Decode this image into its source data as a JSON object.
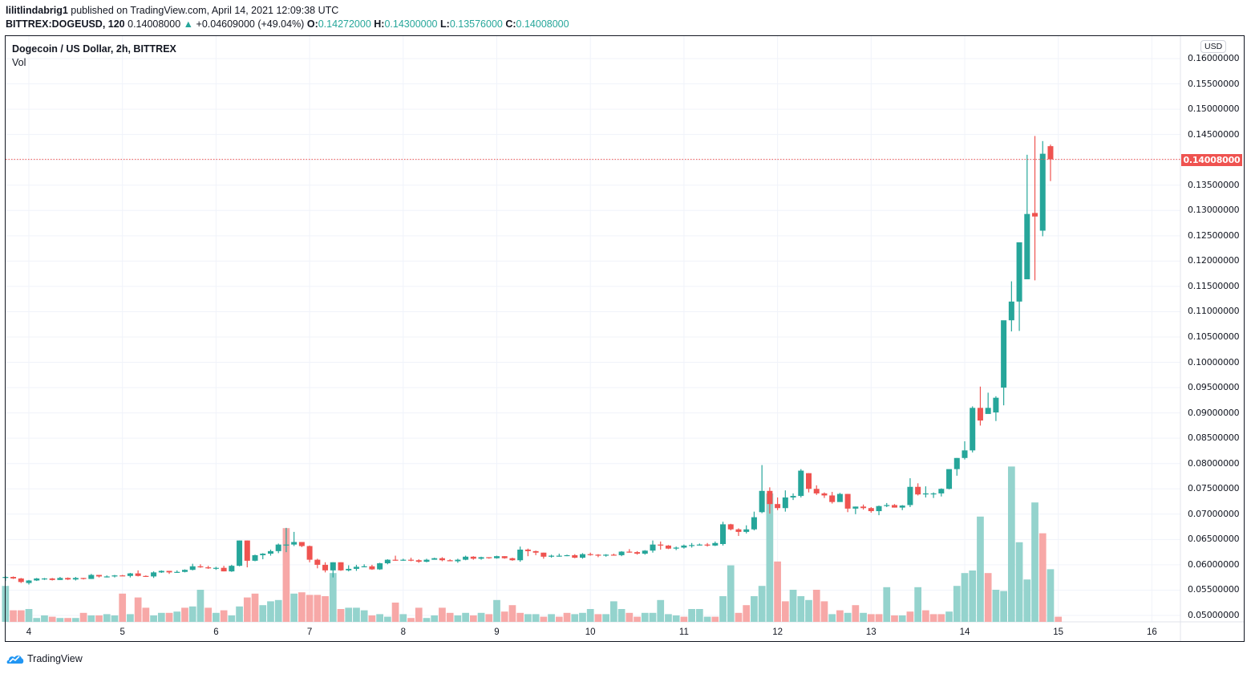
{
  "header": {
    "publisher": "lilitlindabrig1",
    "published_text": " published on TradingView.com, April 14, 2021 12:09:38 UTC",
    "symbol": "BITTREX:DOGEUSD, 120",
    "last": "0.14008000",
    "change_arrow": "▲",
    "change": "+0.04609000 (+49.04%)",
    "o_label": "O:",
    "o": "0.14272000",
    "h_label": "H:",
    "h": "0.14300000",
    "l_label": "L:",
    "l": "0.13576000",
    "c_label": "C:",
    "c": "0.14008000"
  },
  "legend": {
    "title": "Dogecoin / US Dollar, 2h, BITTREX",
    "volume_label": "Vol"
  },
  "currency_button": "USD",
  "last_price_label": "0.14008000",
  "footer": {
    "brand": "TradingView"
  },
  "colors": {
    "up": "#26a69a",
    "down": "#ef5350",
    "vol_up": "#94d3cd",
    "vol_down": "#f7a8a7",
    "grid": "#f0f3fa",
    "last_line": "#ef5350"
  },
  "chart_data": {
    "type": "candlestick",
    "title": "Dogecoin / US Dollar, 2h, BITTREX",
    "interval": "2h",
    "xlabel": "",
    "ylabel": "USD",
    "ylim": [
      0.0485,
      0.162
    ],
    "grid": true,
    "y_ticks": [
      "0.16000000",
      "0.15500000",
      "0.15000000",
      "0.14500000",
      "0.14000000",
      "0.13500000",
      "0.13000000",
      "0.12500000",
      "0.12000000",
      "0.11500000",
      "0.11000000",
      "0.10500000",
      "0.10000000",
      "0.09500000",
      "0.09000000",
      "0.08500000",
      "0.08000000",
      "0.07500000",
      "0.07000000",
      "0.06500000",
      "0.06000000",
      "0.05500000",
      "0.05000000"
    ],
    "x_ticks": [
      "4",
      "5",
      "6",
      "7",
      "8",
      "9",
      "10",
      "11",
      "12",
      "13",
      "14",
      "15",
      "16"
    ],
    "last_price": 0.14008,
    "candles_start_day": 3.75,
    "candles": [
      [
        0.0574,
        0.0578,
        0.0568,
        0.0576
      ],
      [
        0.0576,
        0.0577,
        0.0572,
        0.0573
      ],
      [
        0.0573,
        0.0574,
        0.0564,
        0.0566
      ],
      [
        0.0564,
        0.057,
        0.0561,
        0.0569
      ],
      [
        0.0569,
        0.0574,
        0.0568,
        0.0573
      ],
      [
        0.0573,
        0.0574,
        0.057,
        0.0573
      ],
      [
        0.0573,
        0.0574,
        0.0569,
        0.057
      ],
      [
        0.057,
        0.0576,
        0.057,
        0.0574
      ],
      [
        0.0574,
        0.0575,
        0.057,
        0.0571
      ],
      [
        0.0571,
        0.0576,
        0.0569,
        0.0574
      ],
      [
        0.0574,
        0.0574,
        0.0571,
        0.0572
      ],
      [
        0.0572,
        0.0582,
        0.0572,
        0.058
      ],
      [
        0.058,
        0.058,
        0.0575,
        0.0577
      ],
      [
        0.0577,
        0.0579,
        0.0575,
        0.0577
      ],
      [
        0.0577,
        0.058,
        0.0575,
        0.0579
      ],
      [
        0.0579,
        0.058,
        0.0578,
        0.0578
      ],
      [
        0.0578,
        0.0584,
        0.0575,
        0.0583
      ],
      [
        0.0583,
        0.0589,
        0.0577,
        0.0578
      ],
      [
        0.0578,
        0.0579,
        0.0576,
        0.0577
      ],
      [
        0.0577,
        0.0587,
        0.0574,
        0.0585
      ],
      [
        0.0585,
        0.0589,
        0.0584,
        0.0588
      ],
      [
        0.0588,
        0.0588,
        0.0582,
        0.0585
      ],
      [
        0.0585,
        0.0589,
        0.0584,
        0.0586
      ],
      [
        0.0586,
        0.0591,
        0.0585,
        0.059
      ],
      [
        0.059,
        0.0602,
        0.0589,
        0.0597
      ],
      [
        0.0597,
        0.0601,
        0.0594,
        0.0595
      ],
      [
        0.0595,
        0.0598,
        0.0592,
        0.0593
      ],
      [
        0.0593,
        0.0596,
        0.059,
        0.0594
      ],
      [
        0.0594,
        0.0598,
        0.0587,
        0.0587
      ],
      [
        0.0587,
        0.06,
        0.0586,
        0.0598
      ],
      [
        0.0598,
        0.0648,
        0.0597,
        0.0648
      ],
      [
        0.0648,
        0.0648,
        0.0595,
        0.0608
      ],
      [
        0.0608,
        0.062,
        0.0607,
        0.0619
      ],
      [
        0.0619,
        0.0623,
        0.0611,
        0.0622
      ],
      [
        0.0622,
        0.063,
        0.0618,
        0.0627
      ],
      [
        0.0627,
        0.0642,
        0.0623,
        0.064
      ],
      [
        0.064,
        0.0673,
        0.0625,
        0.064
      ],
      [
        0.064,
        0.0665,
        0.0637,
        0.0645
      ],
      [
        0.0645,
        0.0645,
        0.0635,
        0.0637
      ],
      [
        0.0637,
        0.0638,
        0.0605,
        0.061
      ],
      [
        0.061,
        0.0612,
        0.0593,
        0.06
      ],
      [
        0.06,
        0.0605,
        0.0585,
        0.0589
      ],
      [
        0.0589,
        0.0605,
        0.0575,
        0.0605
      ],
      [
        0.0605,
        0.0605,
        0.0588,
        0.0589
      ],
      [
        0.0589,
        0.0599,
        0.0587,
        0.0592
      ],
      [
        0.0592,
        0.06,
        0.0588,
        0.0596
      ],
      [
        0.0596,
        0.0601,
        0.0595,
        0.0597
      ],
      [
        0.0597,
        0.06,
        0.059,
        0.0591
      ],
      [
        0.0591,
        0.0604,
        0.059,
        0.0603
      ],
      [
        0.0603,
        0.0611,
        0.0601,
        0.061
      ],
      [
        0.061,
        0.0618,
        0.0608,
        0.0609
      ],
      [
        0.0609,
        0.0612,
        0.0608,
        0.061
      ],
      [
        0.061,
        0.0614,
        0.0607,
        0.0609
      ],
      [
        0.0609,
        0.0611,
        0.0604,
        0.0606
      ],
      [
        0.0606,
        0.0612,
        0.0605,
        0.061
      ],
      [
        0.061,
        0.0614,
        0.061,
        0.0613
      ],
      [
        0.0613,
        0.0615,
        0.0607,
        0.0609
      ],
      [
        0.0609,
        0.0611,
        0.0607,
        0.0607
      ],
      [
        0.0607,
        0.0612,
        0.0604,
        0.061
      ],
      [
        0.061,
        0.0618,
        0.0609,
        0.0616
      ],
      [
        0.0616,
        0.0617,
        0.061,
        0.0612
      ],
      [
        0.0612,
        0.0616,
        0.061,
        0.0615
      ],
      [
        0.0615,
        0.0615,
        0.0612,
        0.0613
      ],
      [
        0.0613,
        0.0618,
        0.0612,
        0.0617
      ],
      [
        0.0617,
        0.0617,
        0.0612,
        0.0613
      ],
      [
        0.0613,
        0.0614,
        0.0608,
        0.0609
      ],
      [
        0.0609,
        0.0636,
        0.0606,
        0.063
      ],
      [
        0.063,
        0.0632,
        0.0617,
        0.0627
      ],
      [
        0.0627,
        0.0628,
        0.0619,
        0.0624
      ],
      [
        0.0624,
        0.0624,
        0.0612,
        0.0616
      ],
      [
        0.0616,
        0.062,
        0.0614,
        0.0618
      ],
      [
        0.0618,
        0.0622,
        0.0616,
        0.0618
      ],
      [
        0.0618,
        0.062,
        0.0617,
        0.0619
      ],
      [
        0.0619,
        0.0621,
        0.0613,
        0.0614
      ],
      [
        0.0614,
        0.0623,
        0.0612,
        0.0621
      ],
      [
        0.0621,
        0.0624,
        0.0618,
        0.062
      ],
      [
        0.062,
        0.0621,
        0.0615,
        0.0618
      ],
      [
        0.0618,
        0.0621,
        0.0616,
        0.062
      ],
      [
        0.062,
        0.0622,
        0.0618,
        0.0619
      ],
      [
        0.0619,
        0.0627,
        0.0617,
        0.0626
      ],
      [
        0.0626,
        0.0631,
        0.0624,
        0.0625
      ],
      [
        0.0625,
        0.0627,
        0.062,
        0.0622
      ],
      [
        0.0622,
        0.0629,
        0.062,
        0.0628
      ],
      [
        0.0628,
        0.0648,
        0.0624,
        0.064
      ],
      [
        0.064,
        0.0646,
        0.063,
        0.0638
      ],
      [
        0.0638,
        0.0639,
        0.0631,
        0.0632
      ],
      [
        0.0632,
        0.0636,
        0.0629,
        0.0634
      ],
      [
        0.0634,
        0.064,
        0.0632,
        0.0638
      ],
      [
        0.0638,
        0.0643,
        0.0634,
        0.0639
      ],
      [
        0.0639,
        0.0642,
        0.0638,
        0.064
      ],
      [
        0.064,
        0.0643,
        0.0636,
        0.0638
      ],
      [
        0.0638,
        0.0646,
        0.0637,
        0.0643
      ],
      [
        0.0641,
        0.0685,
        0.0638,
        0.068
      ],
      [
        0.068,
        0.0681,
        0.0668,
        0.067
      ],
      [
        0.067,
        0.0672,
        0.0657,
        0.0665
      ],
      [
        0.0665,
        0.0678,
        0.0662,
        0.067
      ],
      [
        0.067,
        0.0705,
        0.0668,
        0.0694
      ],
      [
        0.0704,
        0.0797,
        0.0702,
        0.0746
      ],
      [
        0.0746,
        0.0753,
        0.0701,
        0.072
      ],
      [
        0.072,
        0.0733,
        0.0708,
        0.0712
      ],
      [
        0.0712,
        0.0747,
        0.0705,
        0.0733
      ],
      [
        0.0733,
        0.0741,
        0.0728,
        0.0736
      ],
      [
        0.0736,
        0.0789,
        0.0733,
        0.0786
      ],
      [
        0.0781,
        0.0781,
        0.0743,
        0.075
      ],
      [
        0.075,
        0.0757,
        0.0738,
        0.0741
      ],
      [
        0.0741,
        0.0743,
        0.0732,
        0.0737
      ],
      [
        0.0737,
        0.0744,
        0.0721,
        0.0724
      ],
      [
        0.0724,
        0.0742,
        0.0728,
        0.074
      ],
      [
        0.074,
        0.074,
        0.0704,
        0.0711
      ],
      [
        0.0711,
        0.0715,
        0.07,
        0.0715
      ],
      [
        0.0715,
        0.0719,
        0.0709,
        0.0712
      ],
      [
        0.0712,
        0.0714,
        0.0703,
        0.0706
      ],
      [
        0.0706,
        0.0717,
        0.0698,
        0.0716
      ],
      [
        0.0716,
        0.0722,
        0.0714,
        0.0718
      ],
      [
        0.0718,
        0.072,
        0.0713,
        0.0713
      ],
      [
        0.0713,
        0.0718,
        0.0708,
        0.0717
      ],
      [
        0.0718,
        0.0771,
        0.0714,
        0.0754
      ],
      [
        0.0754,
        0.0761,
        0.0737,
        0.0739
      ],
      [
        0.0739,
        0.0755,
        0.0733,
        0.0741
      ],
      [
        0.0741,
        0.0743,
        0.0732,
        0.0741
      ],
      [
        0.0741,
        0.0751,
        0.0735,
        0.075
      ],
      [
        0.075,
        0.0776,
        0.0749,
        0.0789
      ],
      [
        0.0789,
        0.0811,
        0.0776,
        0.0811
      ],
      [
        0.0811,
        0.0844,
        0.0808,
        0.0826
      ],
      [
        0.0826,
        0.0913,
        0.0822,
        0.091
      ],
      [
        0.091,
        0.0952,
        0.0875,
        0.0885
      ],
      [
        0.0898,
        0.094,
        0.0903,
        0.091
      ],
      [
        0.0901,
        0.0933,
        0.0884,
        0.093
      ],
      [
        0.095,
        0.1082,
        0.0915,
        0.1083
      ],
      [
        0.1083,
        0.116,
        0.1061,
        0.112
      ],
      [
        0.112,
        0.123,
        0.1062,
        0.1237
      ],
      [
        0.1164,
        0.141,
        0.12,
        0.1293
      ],
      [
        0.1295,
        0.1447,
        0.1162,
        0.1288
      ],
      [
        0.126,
        0.1437,
        0.1249,
        0.1412
      ],
      [
        0.1427,
        0.143,
        0.1358,
        0.1401
      ]
    ],
    "volume": [
      [
        0.28,
        1
      ],
      [
        0.09,
        0
      ],
      [
        0.09,
        0
      ],
      [
        0.1,
        1
      ],
      [
        0.03,
        1
      ],
      [
        0.05,
        1
      ],
      [
        0.04,
        0
      ],
      [
        0.03,
        1
      ],
      [
        0.03,
        0
      ],
      [
        0.03,
        1
      ],
      [
        0.07,
        0
      ],
      [
        0.05,
        1
      ],
      [
        0.05,
        0
      ],
      [
        0.06,
        1
      ],
      [
        0.05,
        1
      ],
      [
        0.22,
        0
      ],
      [
        0.06,
        1
      ],
      [
        0.19,
        0
      ],
      [
        0.11,
        0
      ],
      [
        0.05,
        1
      ],
      [
        0.07,
        1
      ],
      [
        0.07,
        0
      ],
      [
        0.08,
        1
      ],
      [
        0.11,
        0
      ],
      [
        0.12,
        1
      ],
      [
        0.25,
        1
      ],
      [
        0.11,
        0
      ],
      [
        0.07,
        1
      ],
      [
        0.09,
        0
      ],
      [
        0.05,
        1
      ],
      [
        0.12,
        1
      ],
      [
        0.19,
        0
      ],
      [
        0.22,
        0
      ],
      [
        0.13,
        1
      ],
      [
        0.16,
        1
      ],
      [
        0.17,
        1
      ],
      [
        0.73,
        0
      ],
      [
        0.22,
        1
      ],
      [
        0.23,
        0
      ],
      [
        0.21,
        0
      ],
      [
        0.21,
        0
      ],
      [
        0.2,
        0
      ],
      [
        0.38,
        1
      ],
      [
        0.1,
        0
      ],
      [
        0.11,
        1
      ],
      [
        0.11,
        1
      ],
      [
        0.09,
        1
      ],
      [
        0.05,
        0
      ],
      [
        0.06,
        1
      ],
      [
        0.04,
        1
      ],
      [
        0.15,
        0
      ],
      [
        0.06,
        1
      ],
      [
        0.03,
        0
      ],
      [
        0.11,
        0
      ],
      [
        0.03,
        1
      ],
      [
        0.05,
        1
      ],
      [
        0.11,
        0
      ],
      [
        0.07,
        0
      ],
      [
        0.05,
        1
      ],
      [
        0.07,
        1
      ],
      [
        0.05,
        0
      ],
      [
        0.07,
        1
      ],
      [
        0.06,
        0
      ],
      [
        0.17,
        1
      ],
      [
        0.08,
        0
      ],
      [
        0.13,
        0
      ],
      [
        0.07,
        0
      ],
      [
        0.06,
        1
      ],
      [
        0.06,
        1
      ],
      [
        0.04,
        0
      ],
      [
        0.06,
        1
      ],
      [
        0.04,
        0
      ],
      [
        0.07,
        0
      ],
      [
        0.06,
        1
      ],
      [
        0.07,
        1
      ],
      [
        0.1,
        1
      ],
      [
        0.06,
        0
      ],
      [
        0.06,
        1
      ],
      [
        0.16,
        1
      ],
      [
        0.1,
        1
      ],
      [
        0.07,
        0
      ],
      [
        0.04,
        0
      ],
      [
        0.07,
        1
      ],
      [
        0.07,
        1
      ],
      [
        0.17,
        1
      ],
      [
        0.06,
        1
      ],
      [
        0.05,
        1
      ],
      [
        0.04,
        0
      ],
      [
        0.1,
        1
      ],
      [
        0.1,
        1
      ],
      [
        0.04,
        1
      ],
      [
        0.04,
        0
      ],
      [
        0.2,
        1
      ],
      [
        0.44,
        1
      ],
      [
        0.07,
        0
      ],
      [
        0.13,
        0
      ],
      [
        0.2,
        1
      ],
      [
        0.28,
        1
      ],
      [
        1.0,
        1
      ],
      [
        0.47,
        0
      ],
      [
        0.16,
        0
      ],
      [
        0.25,
        1
      ],
      [
        0.2,
        1
      ],
      [
        0.17,
        1
      ],
      [
        0.25,
        0
      ],
      [
        0.16,
        0
      ],
      [
        0.06,
        1
      ],
      [
        0.09,
        0
      ],
      [
        0.07,
        1
      ],
      [
        0.13,
        0
      ],
      [
        0.07,
        1
      ],
      [
        0.06,
        0
      ],
      [
        0.06,
        0
      ],
      [
        0.27,
        1
      ],
      [
        0.05,
        0
      ],
      [
        0.05,
        1
      ],
      [
        0.08,
        0
      ],
      [
        0.27,
        1
      ],
      [
        0.09,
        0
      ],
      [
        0.06,
        0
      ],
      [
        0.06,
        0
      ],
      [
        0.08,
        1
      ],
      [
        0.28,
        1
      ],
      [
        0.38,
        1
      ],
      [
        0.4,
        1
      ],
      [
        0.82,
        1
      ],
      [
        0.38,
        0
      ],
      [
        0.25,
        1
      ],
      [
        0.24,
        1
      ],
      [
        1.21,
        1
      ],
      [
        0.62,
        1
      ],
      [
        0.33,
        1
      ],
      [
        0.93,
        1
      ],
      [
        0.69,
        0
      ],
      [
        0.41,
        1
      ],
      [
        0.04,
        0
      ]
    ]
  }
}
